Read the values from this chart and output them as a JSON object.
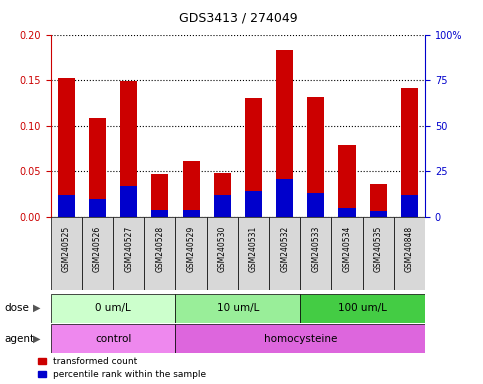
{
  "title": "GDS3413 / 274049",
  "samples": [
    "GSM240525",
    "GSM240526",
    "GSM240527",
    "GSM240528",
    "GSM240529",
    "GSM240530",
    "GSM240531",
    "GSM240532",
    "GSM240533",
    "GSM240534",
    "GSM240535",
    "GSM240848"
  ],
  "red_values": [
    0.152,
    0.109,
    0.149,
    0.047,
    0.061,
    0.048,
    0.13,
    0.183,
    0.132,
    0.079,
    0.036,
    0.141
  ],
  "blue_percentile": [
    12,
    10,
    17,
    4,
    4,
    12,
    14,
    21,
    13,
    5,
    3,
    12
  ],
  "ylim_left": [
    0,
    0.2
  ],
  "ylim_right": [
    0,
    100
  ],
  "yticks_left": [
    0,
    0.05,
    0.1,
    0.15,
    0.2
  ],
  "yticks_right": [
    0,
    25,
    50,
    75,
    100
  ],
  "dose_groups": [
    {
      "label": "0 um/L",
      "start": 0,
      "end": 4,
      "color": "#ccffcc"
    },
    {
      "label": "10 um/L",
      "start": 4,
      "end": 8,
      "color": "#99ee99"
    },
    {
      "label": "100 um/L",
      "start": 8,
      "end": 12,
      "color": "#44cc44"
    }
  ],
  "agent_groups": [
    {
      "label": "control",
      "start": 0,
      "end": 4,
      "color": "#ee88ee"
    },
    {
      "label": "homocysteine",
      "start": 4,
      "end": 12,
      "color": "#dd66dd"
    }
  ],
  "bar_color_red": "#cc0000",
  "bar_color_blue": "#0000cc",
  "bg_color": "#ffffff",
  "tick_color_left": "#cc0000",
  "tick_color_right": "#0000cc",
  "grid_color": "#000000",
  "bar_width": 0.55,
  "legend_red": "transformed count",
  "legend_blue": "percentile rank within the sample",
  "dose_label": "dose",
  "agent_label": "agent",
  "sample_box_color": "#cccccc",
  "plot_bg_color": "#ffffff"
}
